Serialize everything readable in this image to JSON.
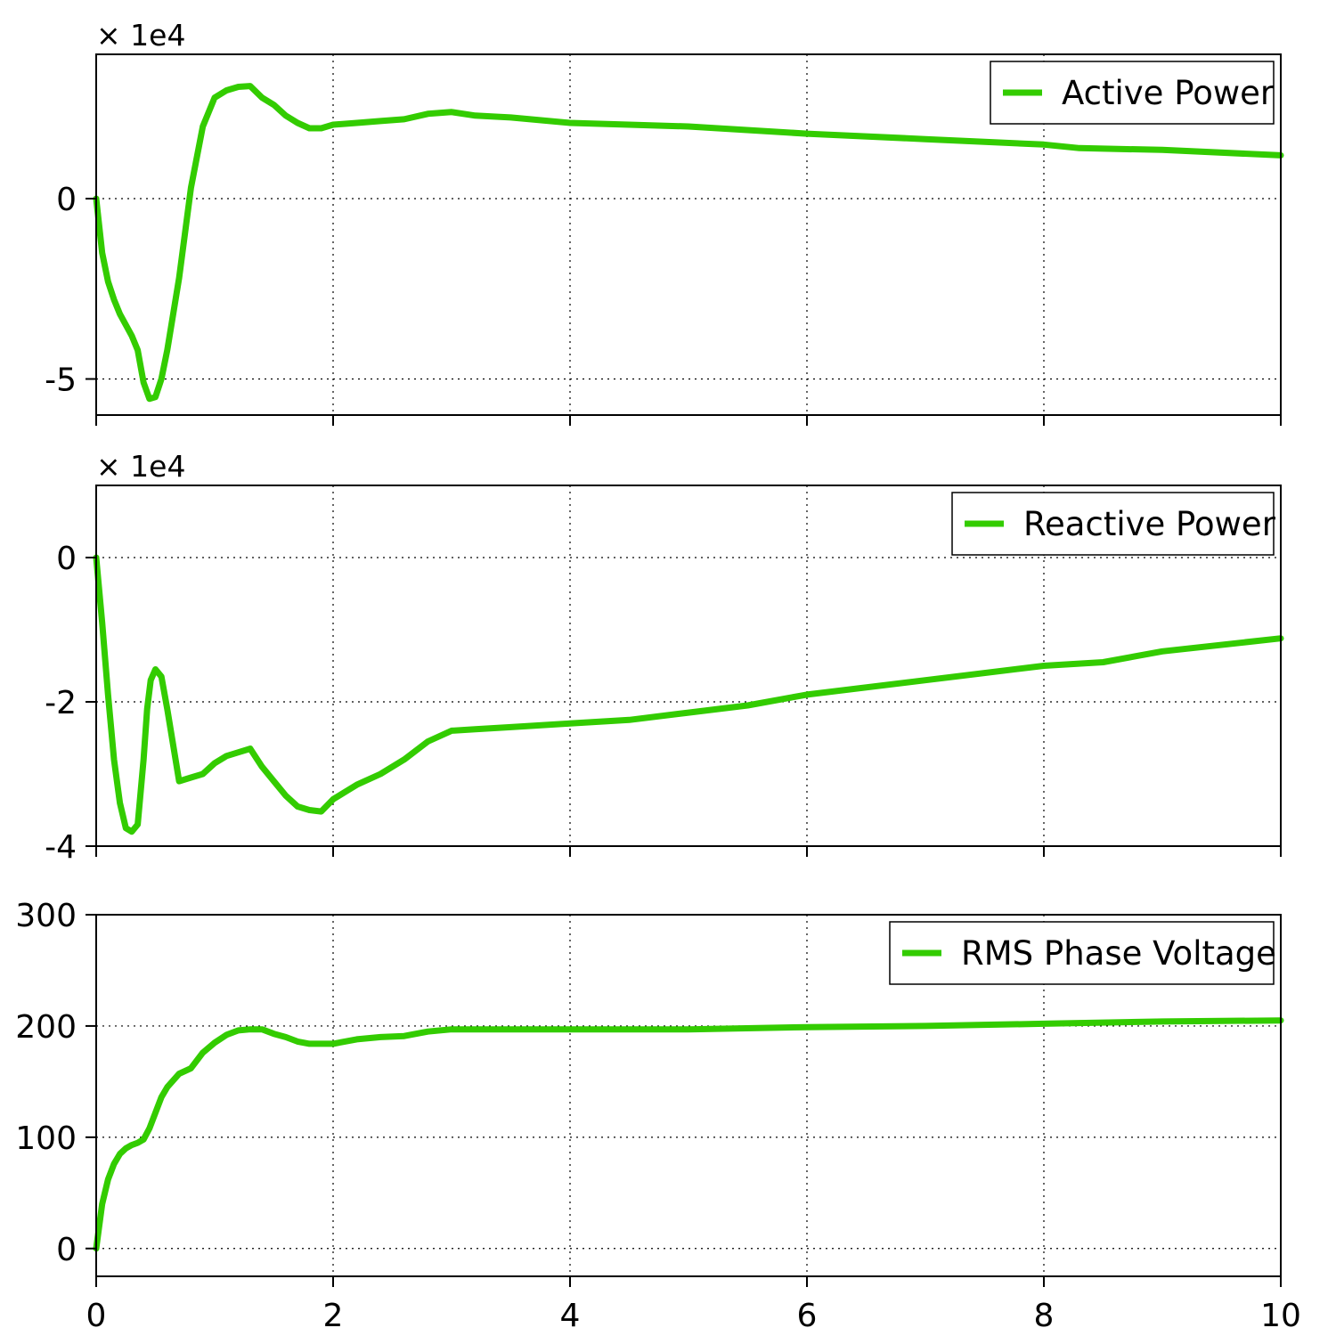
{
  "colors": {
    "series": "#33cc00"
  },
  "chart_data": [
    {
      "type": "line",
      "xlim": [
        0,
        10
      ],
      "ylim": [
        -6,
        4
      ],
      "multiplier": "× 1e4",
      "xticks": [
        0,
        2,
        4,
        6,
        8,
        10
      ],
      "yticks": [
        {
          "value": 0,
          "label": "0"
        },
        {
          "value": -5,
          "label": "-5"
        }
      ],
      "grid": true,
      "legend_position": "top-right",
      "series": [
        {
          "name": "Active Power",
          "x": [
            0,
            0.05,
            0.1,
            0.15,
            0.2,
            0.25,
            0.3,
            0.35,
            0.4,
            0.45,
            0.5,
            0.55,
            0.6,
            0.7,
            0.8,
            0.9,
            1.0,
            1.1,
            1.2,
            1.3,
            1.4,
            1.5,
            1.6,
            1.7,
            1.8,
            1.9,
            2.0,
            2.2,
            2.4,
            2.6,
            2.8,
            3.0,
            3.2,
            3.5,
            4.0,
            4.5,
            5.0,
            6.0,
            7.0,
            8.0,
            8.3,
            9.0,
            10.0
          ],
          "y": [
            0,
            -1.5,
            -2.3,
            -2.8,
            -3.2,
            -3.5,
            -3.8,
            -4.2,
            -5.1,
            -5.55,
            -5.5,
            -5.0,
            -4.2,
            -2.2,
            0.3,
            2.0,
            2.8,
            3.0,
            3.1,
            3.12,
            2.8,
            2.6,
            2.3,
            2.1,
            1.95,
            1.95,
            2.05,
            2.1,
            2.15,
            2.2,
            2.35,
            2.4,
            2.3,
            2.25,
            2.1,
            2.05,
            2.0,
            1.8,
            1.65,
            1.5,
            1.4,
            1.35,
            1.2
          ]
        }
      ]
    },
    {
      "type": "line",
      "xlim": [
        0,
        10
      ],
      "ylim": [
        -4,
        1
      ],
      "multiplier": "× 1e4",
      "xticks": [
        0,
        2,
        4,
        6,
        8,
        10
      ],
      "yticks": [
        {
          "value": 0,
          "label": "0"
        },
        {
          "value": -2,
          "label": "-2"
        },
        {
          "value": -4,
          "label": "-4"
        }
      ],
      "grid": true,
      "legend_position": "top-right",
      "series": [
        {
          "name": "Reactive Power",
          "x": [
            0,
            0.05,
            0.1,
            0.15,
            0.2,
            0.25,
            0.3,
            0.35,
            0.4,
            0.43,
            0.46,
            0.5,
            0.55,
            0.6,
            0.7,
            0.8,
            0.9,
            1.0,
            1.1,
            1.2,
            1.3,
            1.4,
            1.5,
            1.6,
            1.7,
            1.8,
            1.9,
            2.0,
            2.2,
            2.4,
            2.6,
            2.8,
            3.0,
            3.2,
            3.5,
            4.0,
            4.5,
            5.0,
            5.5,
            6.0,
            7.0,
            8.0,
            8.5,
            9.0,
            10.0
          ],
          "y": [
            0,
            -0.9,
            -1.9,
            -2.8,
            -3.4,
            -3.75,
            -3.8,
            -3.7,
            -2.8,
            -2.1,
            -1.7,
            -1.55,
            -1.65,
            -2.1,
            -3.1,
            -3.05,
            -3.0,
            -2.85,
            -2.75,
            -2.7,
            -2.65,
            -2.9,
            -3.1,
            -3.3,
            -3.45,
            -3.5,
            -3.52,
            -3.35,
            -3.15,
            -3.0,
            -2.8,
            -2.55,
            -2.4,
            -2.38,
            -2.35,
            -2.3,
            -2.25,
            -2.15,
            -2.05,
            -1.9,
            -1.7,
            -1.5,
            -1.45,
            -1.3,
            -1.12
          ]
        }
      ]
    },
    {
      "type": "line",
      "xlim": [
        0,
        10
      ],
      "ylim": [
        -25,
        300
      ],
      "multiplier": "",
      "xticks": [
        0,
        2,
        4,
        6,
        8,
        10
      ],
      "yticks": [
        {
          "value": 0,
          "label": "0"
        },
        {
          "value": 100,
          "label": "100"
        },
        {
          "value": 200,
          "label": "200"
        },
        {
          "value": 300,
          "label": "300"
        }
      ],
      "grid": true,
      "legend_position": "top-right",
      "series": [
        {
          "name": "RMS Phase Voltage",
          "x": [
            0,
            0.05,
            0.1,
            0.15,
            0.2,
            0.25,
            0.3,
            0.35,
            0.4,
            0.45,
            0.5,
            0.55,
            0.6,
            0.7,
            0.8,
            0.9,
            1.0,
            1.1,
            1.2,
            1.3,
            1.4,
            1.5,
            1.6,
            1.7,
            1.8,
            1.9,
            2.0,
            2.2,
            2.4,
            2.6,
            2.8,
            3.0,
            3.5,
            4.0,
            5.0,
            6.0,
            7.0,
            8.0,
            9.0,
            10.0
          ],
          "y": [
            0,
            40,
            62,
            76,
            85,
            90,
            93,
            95,
            98,
            108,
            122,
            136,
            145,
            157,
            162,
            176,
            185,
            192,
            196,
            197,
            197,
            193,
            190,
            186,
            184,
            184,
            184,
            188,
            190,
            191,
            195,
            197,
            197,
            197,
            197,
            199,
            200,
            202,
            204,
            205
          ]
        }
      ]
    }
  ]
}
